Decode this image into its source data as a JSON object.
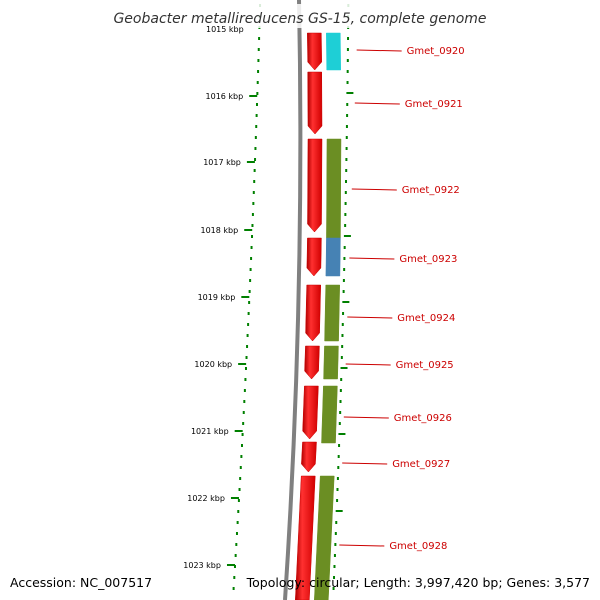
{
  "header": {
    "title": "Geobacter metallireducens GS-15, complete genome",
    "top_kbp_label": "1015 kbp"
  },
  "footer": {
    "accession": "Accession: NC_007517",
    "summary": "Topology: circular; Length: 3,997,420 bp; Genes: 3,577"
  },
  "kbp_labels": [
    "1016 kbp",
    "1017 kbp",
    "1018 kbp",
    "1019 kbp",
    "1020 kbp",
    "1021 kbp",
    "1022 kbp",
    "1023 kbp"
  ],
  "genes": [
    {
      "locus_tag": "Gmet_0920",
      "cog_color": "#1ecfd6"
    },
    {
      "locus_tag": "Gmet_0921",
      "cog_color": null
    },
    {
      "locus_tag": "Gmet_0922",
      "cog_color": "#6b8e23"
    },
    {
      "locus_tag": "Gmet_0923",
      "cog_color": "#4682b4"
    },
    {
      "locus_tag": "Gmet_0924",
      "cog_color": "#6b8e23"
    },
    {
      "locus_tag": "Gmet_0925",
      "cog_color": "#6b8e23"
    },
    {
      "locus_tag": "Gmet_0926",
      "cog_color": "#6b8e23"
    },
    {
      "locus_tag": "Gmet_0927",
      "cog_color": null
    },
    {
      "locus_tag": "Gmet_0928",
      "cog_color": "#6b8e23"
    }
  ],
  "colors": {
    "cds": "#ff0000",
    "backbone": "#808080",
    "gc_ticks": "#008000",
    "label": "#cc0000"
  }
}
